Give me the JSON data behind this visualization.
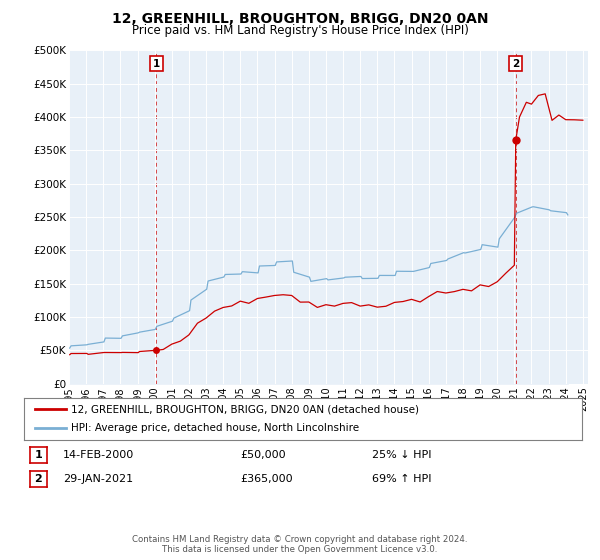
{
  "title": "12, GREENHILL, BROUGHTON, BRIGG, DN20 0AN",
  "subtitle": "Price paid vs. HM Land Registry's House Price Index (HPI)",
  "ylim": [
    0,
    500000
  ],
  "yticks": [
    0,
    50000,
    100000,
    150000,
    200000,
    250000,
    300000,
    350000,
    400000,
    450000,
    500000
  ],
  "ytick_labels": [
    "£0",
    "£50K",
    "£100K",
    "£150K",
    "£200K",
    "£250K",
    "£300K",
    "£350K",
    "£400K",
    "£450K",
    "£500K"
  ],
  "sale1_year": 2000.1,
  "sale1_price": 50000,
  "sale1_label": "1",
  "sale2_year": 2021.08,
  "sale2_price": 365000,
  "sale2_label": "2",
  "hpi_color": "#7aafd4",
  "price_color": "#cc0000",
  "vline_color": "#cc0000",
  "bg_color": "#e8f0f8",
  "legend1_text": "12, GREENHILL, BROUGHTON, BRIGG, DN20 0AN (detached house)",
  "legend2_text": "HPI: Average price, detached house, North Lincolnshire",
  "note1_label": "1",
  "note1_date": "14-FEB-2000",
  "note1_price": "£50,000",
  "note1_pct": "25% ↓ HPI",
  "note2_label": "2",
  "note2_date": "29-JAN-2021",
  "note2_price": "£365,000",
  "note2_pct": "69% ↑ HPI",
  "footer": "Contains HM Land Registry data © Crown copyright and database right 2024.\nThis data is licensed under the Open Government Licence v3.0.",
  "hpi_monthly_years": [
    1995.04,
    1995.12,
    1996.04,
    1996.12,
    1997.04,
    1997.12,
    1998.04,
    1998.12,
    1999.04,
    1999.12,
    2000.04,
    2000.12,
    2001.04,
    2001.12,
    2002.04,
    2002.12,
    2003.04,
    2003.12,
    2004.04,
    2004.12,
    2005.04,
    2005.12,
    2006.04,
    2006.12,
    2007.04,
    2007.12,
    2008.04,
    2008.12,
    2009.04,
    2009.12,
    2010.04,
    2010.12,
    2011.04,
    2011.12,
    2012.04,
    2012.12,
    2013.04,
    2013.12,
    2014.04,
    2014.12,
    2015.04,
    2015.12,
    2016.04,
    2016.12,
    2017.04,
    2017.12,
    2018.04,
    2018.12,
    2019.04,
    2019.12,
    2020.04,
    2020.12,
    2021.04,
    2021.12,
    2022.04,
    2022.12,
    2023.04,
    2023.12,
    2024.04,
    2024.12
  ],
  "hpi_values": [
    54000,
    56000,
    58000,
    60000,
    63000,
    67000,
    70000,
    72000,
    75000,
    78000,
    82000,
    86000,
    92000,
    99000,
    110000,
    126000,
    138000,
    150000,
    158000,
    163000,
    163000,
    165000,
    168000,
    174000,
    180000,
    184000,
    182000,
    170000,
    160000,
    155000,
    158000,
    161000,
    162000,
    161000,
    159000,
    158000,
    158000,
    161000,
    164000,
    168000,
    170000,
    172000,
    175000,
    179000,
    184000,
    187000,
    191000,
    195000,
    199000,
    203000,
    208000,
    220000,
    245000,
    258000,
    265000,
    262000,
    258000,
    254000,
    252000,
    250000
  ],
  "red_monthly_years": [
    1995.04,
    1995.12,
    1996.04,
    1996.12,
    1997.04,
    1997.12,
    1998.04,
    1998.12,
    1999.04,
    1999.12,
    2000.1,
    2000.5,
    2001.0,
    2001.5,
    2002.0,
    2002.5,
    2003.0,
    2003.5,
    2004.0,
    2004.5,
    2005.0,
    2005.5,
    2006.0,
    2006.5,
    2007.0,
    2007.5,
    2008.0,
    2008.5,
    2009.0,
    2009.5,
    2010.0,
    2010.5,
    2011.0,
    2011.5,
    2012.0,
    2012.5,
    2013.0,
    2013.5,
    2014.0,
    2014.5,
    2015.0,
    2015.5,
    2016.0,
    2016.5,
    2017.0,
    2017.5,
    2018.0,
    2018.5,
    2019.0,
    2019.5,
    2020.0,
    2020.5,
    2021.0,
    2021.08,
    2021.3,
    2021.7,
    2022.0,
    2022.4,
    2022.8,
    2023.2,
    2023.6,
    2024.0,
    2024.5,
    2025.0
  ],
  "red_values": [
    44000,
    44500,
    45000,
    45000,
    45500,
    46000,
    46500,
    47000,
    47500,
    48000,
    50000,
    52000,
    58000,
    65000,
    76000,
    89000,
    99000,
    109000,
    116000,
    120000,
    121000,
    122000,
    124000,
    128000,
    133000,
    136000,
    134000,
    125000,
    118000,
    114000,
    116000,
    119000,
    120000,
    119000,
    117000,
    116000,
    117000,
    119000,
    121000,
    124000,
    125000,
    127000,
    129000,
    132000,
    136000,
    138000,
    141000,
    144000,
    147000,
    150000,
    154000,
    162000,
    180000,
    365000,
    400000,
    420000,
    430000,
    435000,
    420000,
    410000,
    405000,
    400000,
    395000,
    390000
  ]
}
